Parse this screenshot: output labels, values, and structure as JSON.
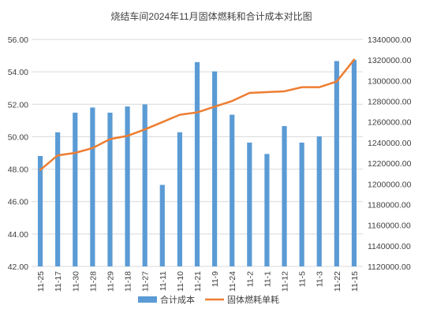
{
  "chart_data": {
    "type": "bar",
    "title": "烧结车间2024年11月固体燃耗和合计成本对比图",
    "categories": [
      "11-25",
      "11-17",
      "11-30",
      "11-28",
      "11-29",
      "11-18",
      "11-27",
      "11-11",
      "11-10",
      "11-21",
      "11-9",
      "11-24",
      "11-2",
      "11-1",
      "11-12",
      "11-5",
      "11-3",
      "11-22",
      "11-15"
    ],
    "series": [
      {
        "name": "合计成本",
        "type": "bar",
        "axis": "right",
        "color": "#5b9bd5",
        "values": [
          1227000,
          1250000,
          1269000,
          1274000,
          1269000,
          1275000,
          1277000,
          1199000,
          1250000,
          1318000,
          1309000,
          1267000,
          1240000,
          1229000,
          1256000,
          1240000,
          1246000,
          1319000,
          1320000
        ]
      },
      {
        "name": "固体燃耗单耗",
        "type": "line",
        "axis": "left",
        "color": "#ed7d31",
        "values": [
          47.95,
          48.85,
          49.0,
          49.3,
          49.85,
          50.05,
          50.45,
          50.9,
          51.35,
          51.5,
          51.85,
          52.2,
          52.7,
          52.75,
          52.8,
          53.05,
          53.05,
          53.4,
          54.75
        ]
      }
    ],
    "y_left": {
      "min": 42,
      "max": 56,
      "step": 2,
      "ticks": [
        "42.00",
        "44.00",
        "46.00",
        "48.00",
        "50.00",
        "52.00",
        "54.00",
        "56.00"
      ]
    },
    "y_right": {
      "min": 1120000,
      "max": 1340000,
      "step": 20000,
      "ticks": [
        "1120000.00",
        "1140000.00",
        "1160000.00",
        "1180000.00",
        "1200000.00",
        "1220000.00",
        "1240000.00",
        "1260000.00",
        "1280000.00",
        "1300000.00",
        "1320000.00",
        "1340000.00"
      ]
    },
    "grid": true,
    "legend_position": "bottom"
  }
}
